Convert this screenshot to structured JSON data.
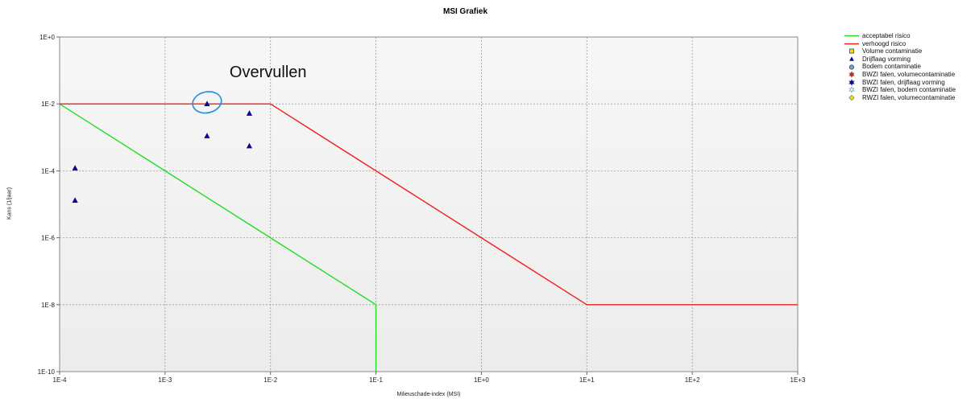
{
  "chart_data": {
    "type": "scatter",
    "title": "MSI Grafiek",
    "xlabel": "Milieuschade-index (MSI)",
    "ylabel": "Kans (1/jaar)",
    "x_scale": "log",
    "y_scale": "log",
    "xlim": [
      0.0001,
      1000
    ],
    "ylim": [
      1e-10,
      1
    ],
    "grid": true,
    "x_tick_labels": [
      "1E-4",
      "1E-3",
      "1E-2",
      "1E-1",
      "1E+0",
      "1E+1",
      "1E+2",
      "1E+3"
    ],
    "y_tick_labels": [
      "1E+0",
      "1E-2",
      "1E-4",
      "1E-6",
      "1E-8",
      "1E-10"
    ],
    "legend_position": "top-right",
    "legend": [
      {
        "label": "acceptabel risico",
        "symbol": "line",
        "color": "#22dd22"
      },
      {
        "label": "verhoogd risico",
        "symbol": "line",
        "color": "#ee2222"
      },
      {
        "label": "Volume contaminatie",
        "symbol": "square",
        "color": "#e8e800"
      },
      {
        "label": "Drijflaag vorming",
        "symbol": "triangle",
        "color": "#0a0a8a"
      },
      {
        "label": "Bodem contaminatie",
        "symbol": "circle",
        "color": "#6fa8c8"
      },
      {
        "label": "BWZI falen, volumecontaminatie",
        "symbol": "star",
        "color": "#aa3322"
      },
      {
        "label": "BWZI falen, drijflaag vorming",
        "symbol": "star",
        "color": "#0a0a8a"
      },
      {
        "label": "BWZI falen, bodem contaminatie",
        "symbol": "star-open",
        "color": "#6fa8c8"
      },
      {
        "label": "RWZI falen, volumecontaminatie",
        "symbol": "diamond",
        "color": "#e8e800"
      }
    ],
    "series": [
      {
        "name": "acceptabel risico",
        "kind": "line",
        "color": "#22dd22",
        "points": [
          [
            0.0001,
            0.01
          ],
          [
            0.001,
            0.0001
          ],
          [
            0.01,
            1e-06
          ],
          [
            0.1,
            1e-08
          ],
          [
            0.1,
            1e-10
          ]
        ]
      },
      {
        "name": "verhoogd risico",
        "kind": "line",
        "color": "#ee2222",
        "points": [
          [
            0.0001,
            0.01
          ],
          [
            0.01,
            0.01
          ],
          [
            0.1,
            0.0001
          ],
          [
            1,
            1e-06
          ],
          [
            10,
            1e-08
          ],
          [
            1000,
            1e-08
          ]
        ]
      },
      {
        "name": "Drijflaag vorming",
        "kind": "scatter",
        "marker": "triangle",
        "color": "#0a0a8a",
        "points": [
          [
            0.00014,
            0.00012
          ],
          [
            0.00014,
            1.3e-05
          ],
          [
            0.0025,
            0.01
          ],
          [
            0.0025,
            0.0011
          ],
          [
            0.0063,
            0.0052
          ],
          [
            0.0063,
            0.00055
          ]
        ]
      }
    ],
    "annotations": [
      {
        "text": "Overvullen",
        "x": 0.0025,
        "y": 0.01,
        "shape": "ellipse",
        "color": "#1e8fd8"
      }
    ]
  }
}
